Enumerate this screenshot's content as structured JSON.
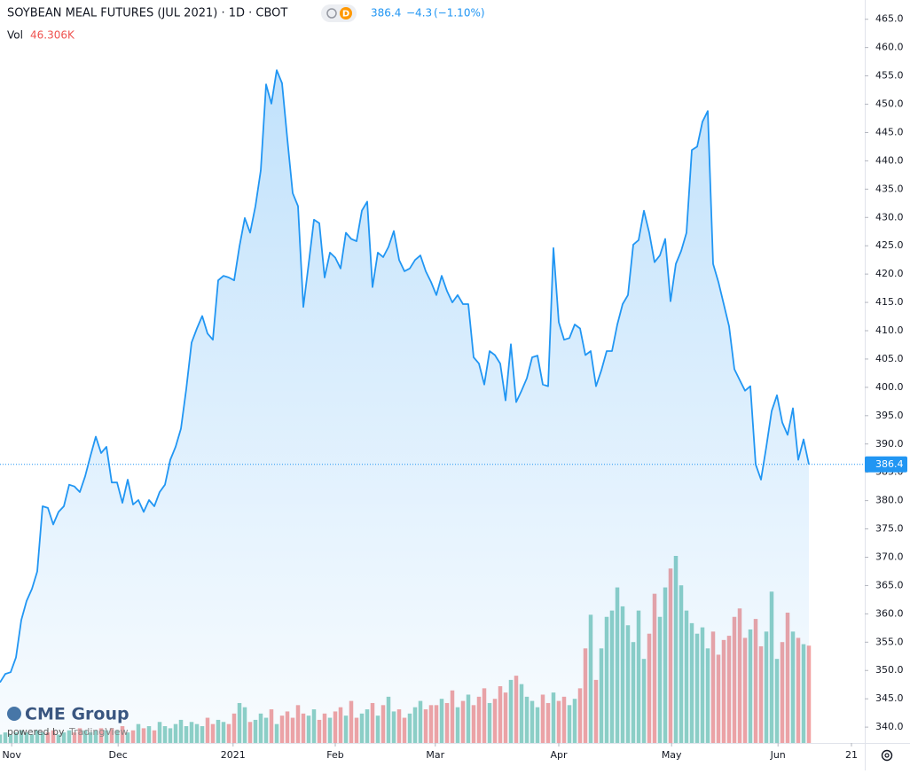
{
  "chart_data": {
    "type": "area",
    "title": "SOYBEAN MEAL FUTURES (JUL 2021) · 1D · CBOT",
    "interval_badge": "D",
    "last_price_text": "386.4",
    "change_text": "−4.3",
    "change_pct_text": "(−1.10%)",
    "volume_name": "Vol",
    "volume_value_label": "46.306K",
    "last_price_label": "386.4",
    "logo": "CME Group",
    "powered_by": "powered by",
    "powered_by_brand": "TradingView",
    "color": "#2196f3",
    "up_color": "#8fd0c5",
    "down_color": "#f2a3a3",
    "grid": false,
    "ylim": [
      337.2,
      468.4
    ],
    "yticks": [
      {
        "value": 340,
        "label": "340.0"
      },
      {
        "value": 345,
        "label": "345.0"
      },
      {
        "value": 350,
        "label": "350.0"
      },
      {
        "value": 355,
        "label": "355.0"
      },
      {
        "value": 360,
        "label": "360.0"
      },
      {
        "value": 365,
        "label": "365.0"
      },
      {
        "value": 370,
        "label": "370.0"
      },
      {
        "value": 375,
        "label": "375.0"
      },
      {
        "value": 380,
        "label": "380.0"
      },
      {
        "value": 385,
        "label": "385.0"
      },
      {
        "value": 390,
        "label": "390.0"
      },
      {
        "value": 395,
        "label": "395.0"
      },
      {
        "value": 400,
        "label": "400.0"
      },
      {
        "value": 405,
        "label": "405.0"
      },
      {
        "value": 410,
        "label": "410.0"
      },
      {
        "value": 415,
        "label": "415.0"
      },
      {
        "value": 420,
        "label": "420.0"
      },
      {
        "value": 425,
        "label": "425.0"
      },
      {
        "value": 430,
        "label": "430.0"
      },
      {
        "value": 435,
        "label": "435.0"
      },
      {
        "value": 440,
        "label": "440.0"
      },
      {
        "value": 445,
        "label": "445.0"
      },
      {
        "value": 450,
        "label": "450.0"
      },
      {
        "value": 455,
        "label": "455.0"
      },
      {
        "value": 460,
        "label": "460.0"
      },
      {
        "value": 465,
        "label": "465.0"
      }
    ],
    "xlim": [
      0,
      162.5
    ],
    "xticks": [
      {
        "value": 2.2,
        "label": "Nov"
      },
      {
        "value": 22.2,
        "label": "Dec"
      },
      {
        "value": 43.8,
        "label": "2021"
      },
      {
        "value": 63,
        "label": "Feb"
      },
      {
        "value": 81.8,
        "label": "Mar"
      },
      {
        "value": 105,
        "label": "Apr"
      },
      {
        "value": 126.2,
        "label": "May"
      },
      {
        "value": 146.2,
        "label": "Jun"
      },
      {
        "value": 160,
        "label": "21"
      }
    ],
    "values": [
      347.9,
      349.4,
      349.7,
      352.3,
      358.9,
      362.3,
      364.4,
      367.5,
      379.0,
      378.7,
      375.8,
      378.0,
      379.0,
      382.8,
      382.5,
      381.5,
      384.3,
      387.9,
      391.3,
      388.4,
      389.5,
      383.2,
      383.2,
      379.6,
      383.7,
      379.3,
      380.1,
      378.0,
      380.1,
      379.0,
      381.5,
      382.8,
      387.2,
      389.5,
      392.7,
      399.7,
      407.9,
      410.4,
      412.6,
      409.5,
      408.4,
      418.9,
      419.7,
      419.4,
      418.9,
      424.9,
      429.9,
      427.3,
      432.0,
      438.3,
      453.5,
      450.1,
      456.0,
      453.7,
      443.8,
      434.3,
      432.0,
      414.2,
      421.8,
      429.6,
      429.0,
      419.4,
      423.8,
      422.9,
      421.0,
      427.3,
      426.2,
      425.8,
      431.2,
      432.8,
      417.7,
      423.8,
      423.0,
      424.8,
      427.6,
      422.5,
      420.5,
      421.0,
      422.5,
      423.3,
      420.5,
      418.6,
      416.3,
      419.7,
      417.0,
      415.0,
      416.3,
      414.7,
      414.7,
      405.3,
      404.2,
      400.5,
      406.4,
      405.7,
      404.2,
      397.7,
      407.6,
      397.4,
      399.4,
      401.6,
      405.3,
      405.6,
      400.5,
      400.2,
      424.6,
      411.5,
      408.4,
      408.7,
      411.1,
      410.4,
      405.7,
      406.4,
      400.2,
      403.0,
      406.4,
      406.4,
      411.1,
      414.7,
      416.3,
      425.2,
      426.0,
      431.2,
      427.3,
      422.1,
      423.3,
      426.2,
      415.2,
      421.8,
      424.1,
      427.3,
      441.9,
      442.5,
      446.9,
      448.8,
      421.8,
      418.6,
      414.7,
      410.8,
      403.2,
      401.3,
      399.4,
      400.2,
      386.4,
      383.7,
      389.5,
      395.8,
      398.6,
      393.8,
      391.6,
      396.3,
      387.2,
      390.8,
      386.4
    ],
    "volume": [
      4,
      5,
      4,
      5,
      6,
      5,
      4,
      6,
      5,
      5,
      6,
      4,
      5,
      6,
      5,
      7,
      6,
      5,
      6,
      7,
      6,
      7,
      6,
      8,
      5,
      6,
      9,
      7,
      8,
      6,
      10,
      8,
      7,
      9,
      11,
      8,
      10,
      9,
      8,
      12,
      9,
      11,
      10,
      9,
      14,
      19,
      17,
      10,
      11,
      14,
      12,
      16,
      9,
      13,
      15,
      12,
      18,
      14,
      13,
      16,
      11,
      14,
      12,
      15,
      17,
      13,
      20,
      12,
      14,
      16,
      19,
      13,
      18,
      22,
      15,
      16,
      12,
      14,
      17,
      20,
      16,
      18,
      18,
      21,
      19,
      25,
      17,
      20,
      23,
      18,
      22,
      26,
      19,
      21,
      27,
      24,
      30,
      32,
      28,
      22,
      20,
      17,
      23,
      19,
      24,
      20,
      22,
      18,
      21,
      26,
      45,
      61,
      30,
      45,
      60,
      63,
      74,
      65,
      56,
      48,
      63,
      40,
      52,
      71,
      60,
      74,
      83,
      89,
      75,
      63,
      57,
      52,
      55,
      45,
      53,
      42,
      49,
      51,
      60,
      64,
      50,
      54,
      59,
      46,
      53,
      72,
      40,
      48,
      62,
      53,
      50,
      47,
      46.306
    ]
  }
}
